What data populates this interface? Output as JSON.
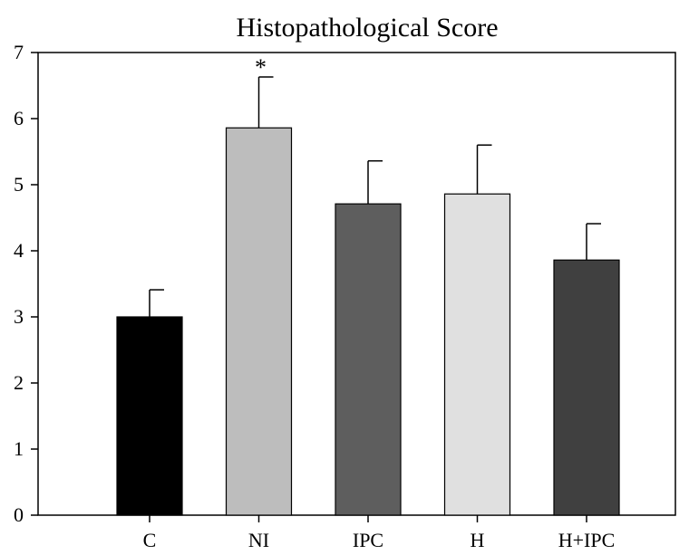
{
  "chart_data": {
    "type": "bar",
    "title": "Histopathological Score",
    "xlabel": "",
    "ylabel": "",
    "ylim": [
      0,
      7
    ],
    "yticks": [
      0,
      1,
      2,
      3,
      4,
      5,
      6,
      7
    ],
    "categories": [
      "C",
      "NI",
      "IPC",
      "H",
      "H+IPC"
    ],
    "values": [
      3.0,
      5.86,
      4.71,
      4.86,
      3.86
    ],
    "errors": [
      0.41,
      0.77,
      0.65,
      0.74,
      0.55
    ],
    "colors": [
      "#000000",
      "#bdbdbd",
      "#5e5e5e",
      "#e0e0e0",
      "#404040"
    ],
    "annotations": [
      {
        "category": "NI",
        "text": "*"
      }
    ],
    "grid": false,
    "legend": "none"
  }
}
